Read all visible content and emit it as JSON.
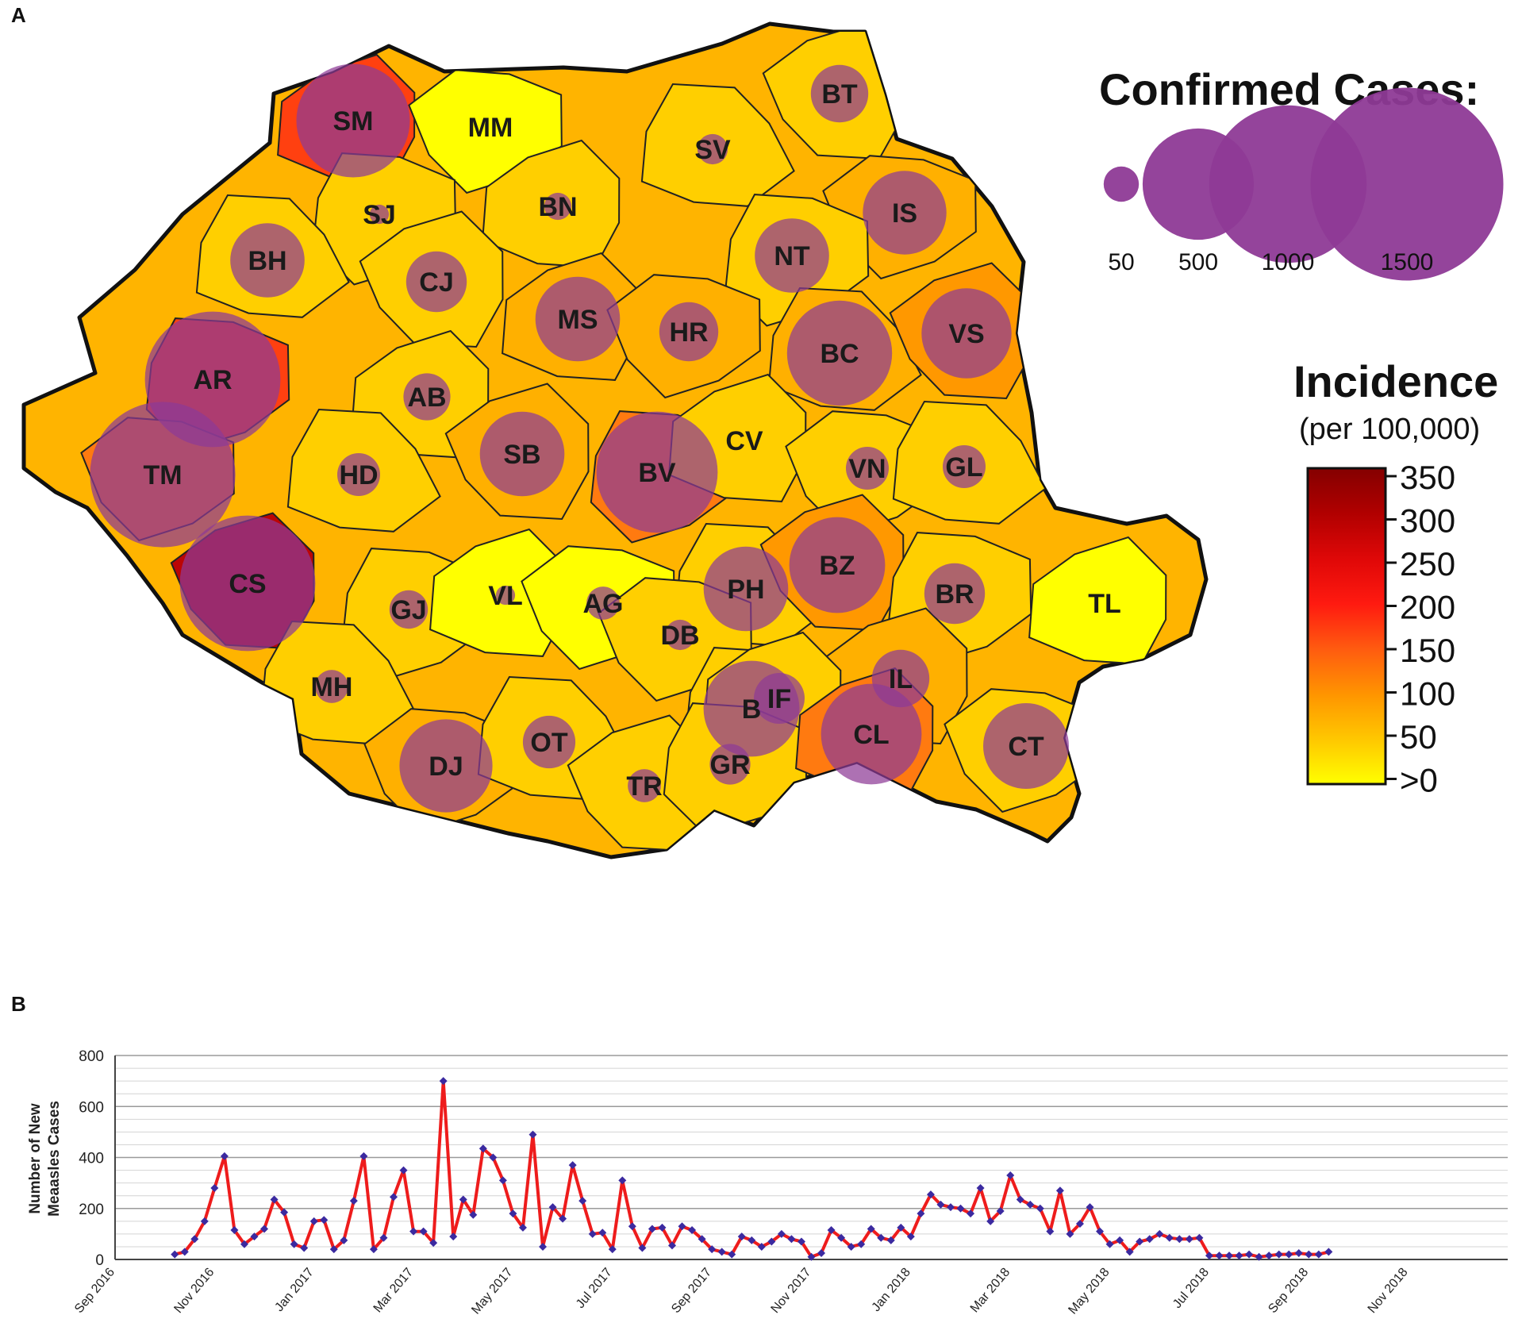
{
  "panels": {
    "a": "A",
    "b": "B"
  },
  "colors": {
    "scale": [
      "#ffff00",
      "#ffcf00",
      "#ffb000",
      "#ff9800",
      "#ff7a10",
      "#ff4010",
      "#ee1010",
      "#bb0505",
      "#8b0000"
    ],
    "bubble": "#8e3a96",
    "border": "#111111",
    "line": "#ee1c1c",
    "marker": "#3b2aa0",
    "grid": "#bfbfbf"
  },
  "map": {
    "counties": [
      {
        "code": "SM",
        "incidence": 220,
        "cases": 700
      },
      {
        "code": "MM",
        "incidence": 15,
        "cases": 0
      },
      {
        "code": "SV",
        "incidence": 40,
        "cases": 50
      },
      {
        "code": "BT",
        "incidence": 70,
        "cases": 180
      },
      {
        "code": "SJ",
        "incidence": 40,
        "cases": 20
      },
      {
        "code": "BN",
        "incidence": 40,
        "cases": 40
      },
      {
        "code": "IS",
        "incidence": 80,
        "cases": 380
      },
      {
        "code": "BH",
        "incidence": 70,
        "cases": 300
      },
      {
        "code": "CJ",
        "incidence": 50,
        "cases": 200
      },
      {
        "code": "NT",
        "incidence": 70,
        "cases": 300
      },
      {
        "code": "MS",
        "incidence": 95,
        "cases": 390
      },
      {
        "code": "HR",
        "incidence": 90,
        "cases": 190
      },
      {
        "code": "BC",
        "incidence": 90,
        "cases": 600
      },
      {
        "code": "VS",
        "incidence": 130,
        "cases": 440
      },
      {
        "code": "AR",
        "incidence": 210,
        "cases": 1000
      },
      {
        "code": "AB",
        "incidence": 55,
        "cases": 120
      },
      {
        "code": "TM",
        "incidence": 180,
        "cases": 1150
      },
      {
        "code": "HD",
        "incidence": 60,
        "cases": 100
      },
      {
        "code": "SB",
        "incidence": 95,
        "cases": 390
      },
      {
        "code": "BV",
        "incidence": 180,
        "cases": 800
      },
      {
        "code": "CV",
        "incidence": 30,
        "cases": 0
      },
      {
        "code": "VN",
        "incidence": 70,
        "cases": 100
      },
      {
        "code": "GL",
        "incidence": 40,
        "cases": 100
      },
      {
        "code": "CS",
        "incidence": 330,
        "cases": 1000
      },
      {
        "code": "GJ",
        "incidence": 50,
        "cases": 80
      },
      {
        "code": "VL",
        "incidence": 20,
        "cases": 20
      },
      {
        "code": "AG",
        "incidence": 25,
        "cases": 60
      },
      {
        "code": "PH",
        "incidence": 60,
        "cases": 390
      },
      {
        "code": "BZ",
        "incidence": 120,
        "cases": 500
      },
      {
        "code": "BR",
        "incidence": 60,
        "cases": 200
      },
      {
        "code": "TL",
        "incidence": 20,
        "cases": 0
      },
      {
        "code": "DB",
        "incidence": 50,
        "cases": 50
      },
      {
        "code": "MH",
        "incidence": 50,
        "cases": 60
      },
      {
        "code": "IL",
        "incidence": 95,
        "cases": 180
      },
      {
        "code": "B",
        "incidence": 70,
        "cases": 500
      },
      {
        "code": "IF",
        "incidence": 70,
        "cases": 140
      },
      {
        "code": "DJ",
        "incidence": 95,
        "cases": 470
      },
      {
        "code": "OT",
        "incidence": 55,
        "cases": 150
      },
      {
        "code": "TR",
        "incidence": 55,
        "cases": 60
      },
      {
        "code": "GR",
        "incidence": 55,
        "cases": 90
      },
      {
        "code": "CL",
        "incidence": 180,
        "cases": 550
      },
      {
        "code": "CT",
        "incidence": 70,
        "cases": 400
      }
    ]
  },
  "legend_cases": {
    "title": "Confirmed Cases:",
    "items": [
      {
        "value": 50,
        "label": "50"
      },
      {
        "value": 500,
        "label": "500"
      },
      {
        "value": 1000,
        "label": "1000"
      },
      {
        "value": 1500,
        "label": "1500"
      }
    ]
  },
  "legend_incidence": {
    "title": "Incidence",
    "subtitle": "(per 100,000)",
    "ticks": [
      "350",
      "300",
      "250",
      "200",
      "150",
      "100",
      "50",
      ">0"
    ]
  },
  "chart_data": {
    "type": "line",
    "title": "",
    "xlabel": "",
    "ylabel_lines": [
      "Number of New",
      "Meaasles Cases"
    ],
    "ylim": [
      0,
      800
    ],
    "yticks": [
      0,
      200,
      400,
      600,
      800
    ],
    "xlim_weeks": [
      0,
      140
    ],
    "xtick_labels": [
      "Sep 2016",
      "Nov 2016",
      "Jan 2017",
      "Mar 2017",
      "May 2017",
      "Jul 2017",
      "Sep 2017",
      "Nov 2017",
      "Jan 2018",
      "Mar 2018",
      "May 2018",
      "Jul 2018",
      "Sep 2018",
      "Nov 2018"
    ],
    "series": [
      {
        "name": "New measles cases",
        "x_start_week": 6,
        "values": [
          20,
          30,
          80,
          150,
          280,
          405,
          115,
          60,
          90,
          120,
          235,
          185,
          60,
          45,
          150,
          155,
          40,
          75,
          230,
          405,
          40,
          85,
          245,
          350,
          110,
          110,
          65,
          700,
          90,
          235,
          175,
          435,
          400,
          310,
          180,
          125,
          490,
          50,
          205,
          160,
          370,
          230,
          100,
          105,
          40,
          310,
          130,
          45,
          120,
          125,
          55,
          130,
          115,
          80,
          40,
          30,
          20,
          90,
          75,
          50,
          70,
          100,
          80,
          70,
          10,
          25,
          115,
          85,
          50,
          60,
          120,
          85,
          75,
          125,
          90,
          180,
          255,
          215,
          205,
          200,
          180,
          280,
          150,
          190,
          330,
          235,
          215,
          200,
          110,
          270,
          100,
          140,
          205,
          110,
          60,
          75,
          30,
          70,
          80,
          100,
          85,
          80,
          80,
          85,
          15,
          15,
          15,
          15,
          20,
          10,
          15,
          20,
          20,
          25,
          20,
          20,
          30
        ]
      }
    ]
  }
}
